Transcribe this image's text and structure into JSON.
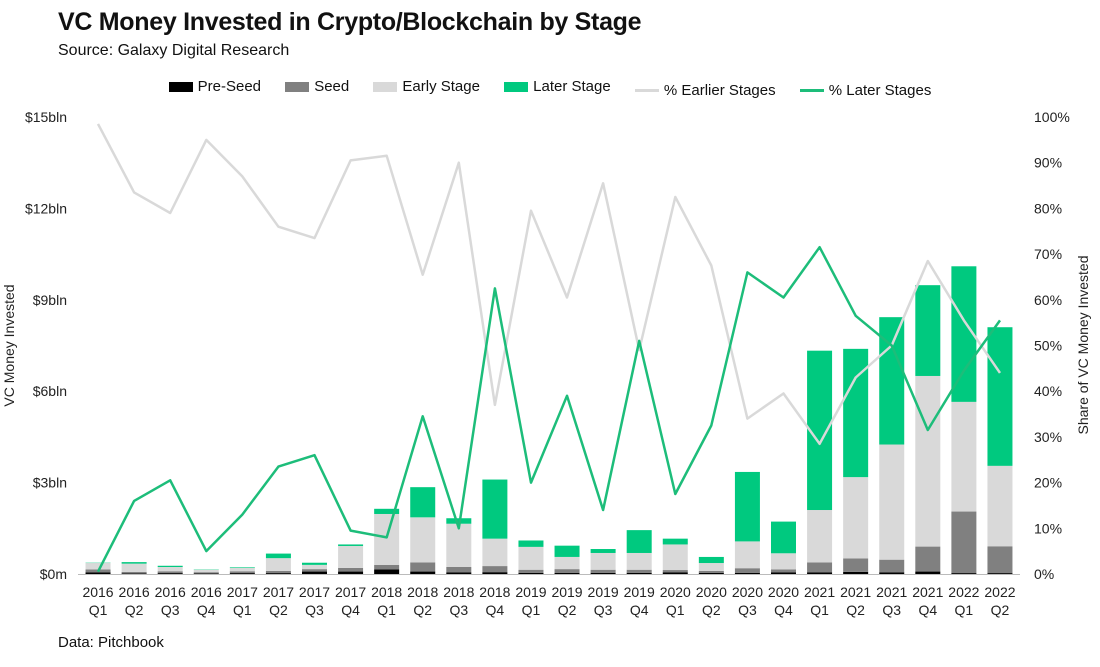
{
  "header": {
    "title": "VC Money Invested in Crypto/Blockchain by Stage",
    "subtitle": "Source: Galaxy Digital Research"
  },
  "footer": {
    "note": "Data: Pitchbook"
  },
  "colors": {
    "pre_seed": "#000000",
    "seed": "#808080",
    "early": "#d9d9d9",
    "later": "#00c97f",
    "pct_earlier": "#d9d9d9",
    "pct_later": "#1dbd7a"
  },
  "chart_data": {
    "type": "bar",
    "stacked": true,
    "title": "VC Money Invested in Crypto/Blockchain by Stage",
    "ylabel": "VC Money Invested",
    "y2label": "Share of VC Money Invested",
    "ylim": [
      0,
      15
    ],
    "y2lim": [
      0,
      100
    ],
    "yticks": [
      "$0m",
      "$3bln",
      "$6bln",
      "$9bln",
      "$12bln",
      "$15bln"
    ],
    "y2ticks": [
      "0%",
      "10%",
      "20%",
      "30%",
      "40%",
      "50%",
      "60%",
      "70%",
      "80%",
      "90%",
      "100%"
    ],
    "legend": [
      "Pre-Seed",
      "Seed",
      "Early Stage",
      "Later Stage",
      "% Earlier Stages",
      "% Later Stages"
    ],
    "legend_position": "top-center",
    "categories": [
      [
        "2016",
        "Q1"
      ],
      [
        "2016",
        "Q2"
      ],
      [
        "2016",
        "Q3"
      ],
      [
        "2016",
        "Q4"
      ],
      [
        "2017",
        "Q1"
      ],
      [
        "2017",
        "Q2"
      ],
      [
        "2017",
        "Q3"
      ],
      [
        "2017",
        "Q4"
      ],
      [
        "2018",
        "Q1"
      ],
      [
        "2018",
        "Q2"
      ],
      [
        "2018",
        "Q3"
      ],
      [
        "2018",
        "Q4"
      ],
      [
        "2019",
        "Q1"
      ],
      [
        "2019",
        "Q2"
      ],
      [
        "2019",
        "Q3"
      ],
      [
        "2019",
        "Q4"
      ],
      [
        "2020",
        "Q1"
      ],
      [
        "2020",
        "Q2"
      ],
      [
        "2020",
        "Q3"
      ],
      [
        "2020",
        "Q4"
      ],
      [
        "2021",
        "Q1"
      ],
      [
        "2021",
        "Q2"
      ],
      [
        "2021",
        "Q3"
      ],
      [
        "2021",
        "Q4"
      ],
      [
        "2022",
        "Q1"
      ],
      [
        "2022",
        "Q2"
      ]
    ],
    "series": [
      {
        "name": "Pre-Seed",
        "axis": "left",
        "values": [
          0.05,
          0.02,
          0.03,
          0.02,
          0.03,
          0.03,
          0.08,
          0.08,
          0.15,
          0.08,
          0.05,
          0.06,
          0.04,
          0.04,
          0.04,
          0.04,
          0.05,
          0.04,
          0.04,
          0.05,
          0.05,
          0.07,
          0.05,
          0.08,
          0.03,
          0.03
        ]
      },
      {
        "name": "Seed",
        "axis": "left",
        "values": [
          0.1,
          0.05,
          0.06,
          0.04,
          0.06,
          0.07,
          0.08,
          0.12,
          0.15,
          0.3,
          0.18,
          0.2,
          0.1,
          0.12,
          0.1,
          0.1,
          0.08,
          0.06,
          0.15,
          0.1,
          0.33,
          0.44,
          0.42,
          0.82,
          2.02,
          0.88
        ]
      },
      {
        "name": "Early Stage",
        "axis": "left",
        "values": [
          0.21,
          0.27,
          0.14,
          0.08,
          0.11,
          0.42,
          0.14,
          0.72,
          1.67,
          1.48,
          1.42,
          0.9,
          0.75,
          0.4,
          0.55,
          0.55,
          0.84,
          0.26,
          0.88,
          0.53,
          1.72,
          2.67,
          3.78,
          5.6,
          3.6,
          2.64
        ]
      },
      {
        "name": "Later Stage",
        "axis": "left",
        "values": [
          0.01,
          0.05,
          0.04,
          0.01,
          0.02,
          0.15,
          0.07,
          0.05,
          0.17,
          0.99,
          0.18,
          1.94,
          0.21,
          0.37,
          0.13,
          0.75,
          0.19,
          0.2,
          2.28,
          1.04,
          5.23,
          4.21,
          4.18,
          2.98,
          4.45,
          4.55
        ]
      },
      {
        "name": "% Earlier Stages",
        "axis": "right",
        "values": [
          98.5,
          83.5,
          79,
          95,
          87,
          76,
          73.5,
          90.5,
          91.5,
          65.5,
          90,
          37,
          79.5,
          60.5,
          85.5,
          49,
          82.5,
          67.5,
          34,
          39.5,
          28.5,
          43,
          50,
          68.5,
          55.5,
          44
        ]
      },
      {
        "name": "% Later Stages",
        "axis": "right",
        "values": [
          0.5,
          16,
          20.5,
          5,
          13,
          23.5,
          26,
          9.5,
          8,
          34.5,
          10,
          62.5,
          20,
          39,
          14,
          51,
          17.5,
          32.5,
          66,
          60.5,
          71.5,
          56.5,
          50,
          31.5,
          44.5,
          55.5
        ]
      }
    ]
  }
}
